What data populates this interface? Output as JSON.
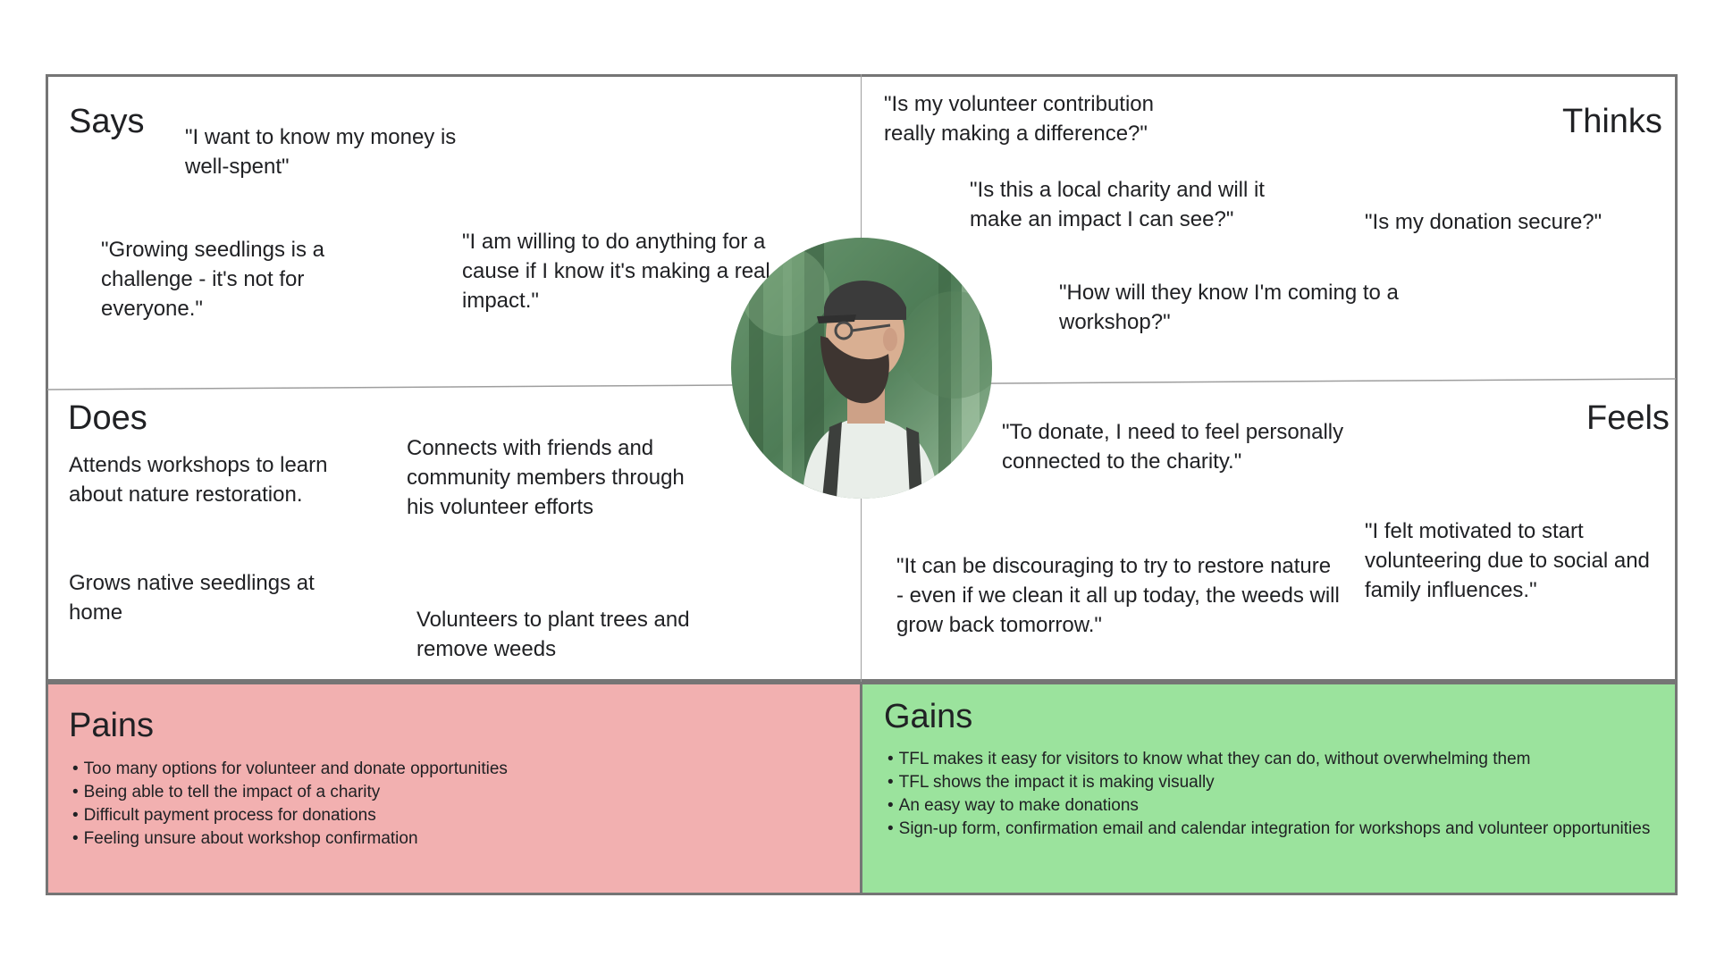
{
  "map": {
    "says": {
      "title": "Says",
      "quotes": [
        "\"I want to know my money is well-spent\"",
        "\"Growing seedlings is a challenge - it's not for everyone.\"",
        "\"I am willing to do anything for a cause if I know it's making a real impact.\""
      ]
    },
    "thinks": {
      "title": "Thinks",
      "quotes": [
        "\"Is my volunteer contribution really making a difference?\"",
        "\"Is this a local charity and will it make an impact I can see?\"",
        "\"Is my donation secure?\"",
        "\"How will they know I'm coming to a workshop?\""
      ]
    },
    "does": {
      "title": "Does",
      "items": [
        "Attends workshops to learn about nature restoration.",
        "Connects with friends and community members through his volunteer efforts",
        "Grows native seedlings at home",
        "Volunteers to plant trees and remove weeds"
      ]
    },
    "feels": {
      "title": "Feels",
      "quotes": [
        "\"To donate, I need to feel personally connected to the charity.\"",
        "\"I felt motivated to start volunteering due to social and family influences.\"",
        "\"It can be discouraging to try to restore nature - even if we clean it all up today, the weeds will grow back tomorrow.\""
      ]
    }
  },
  "pains": {
    "title": "Pains",
    "items": [
      "Too many options for volunteer and donate opportunities",
      "Being able to tell the impact of a charity",
      "Difficult payment process for donations",
      "Feeling unsure about workshop confirmation"
    ]
  },
  "gains": {
    "title": "Gains",
    "items": [
      "TFL makes it easy for visitors to know what they can do, without overwhelming them",
      "TFL shows the impact it is making visually",
      "An easy way to make donations",
      "Sign-up form, confirmation email and calendar integration for workshops and volunteer opportunities"
    ]
  },
  "colors": {
    "pains_bg": "#f2b0b0",
    "gains_bg": "#9be39d",
    "border": "#757575"
  },
  "persona_image": "bearded-man-in-forest-photo"
}
